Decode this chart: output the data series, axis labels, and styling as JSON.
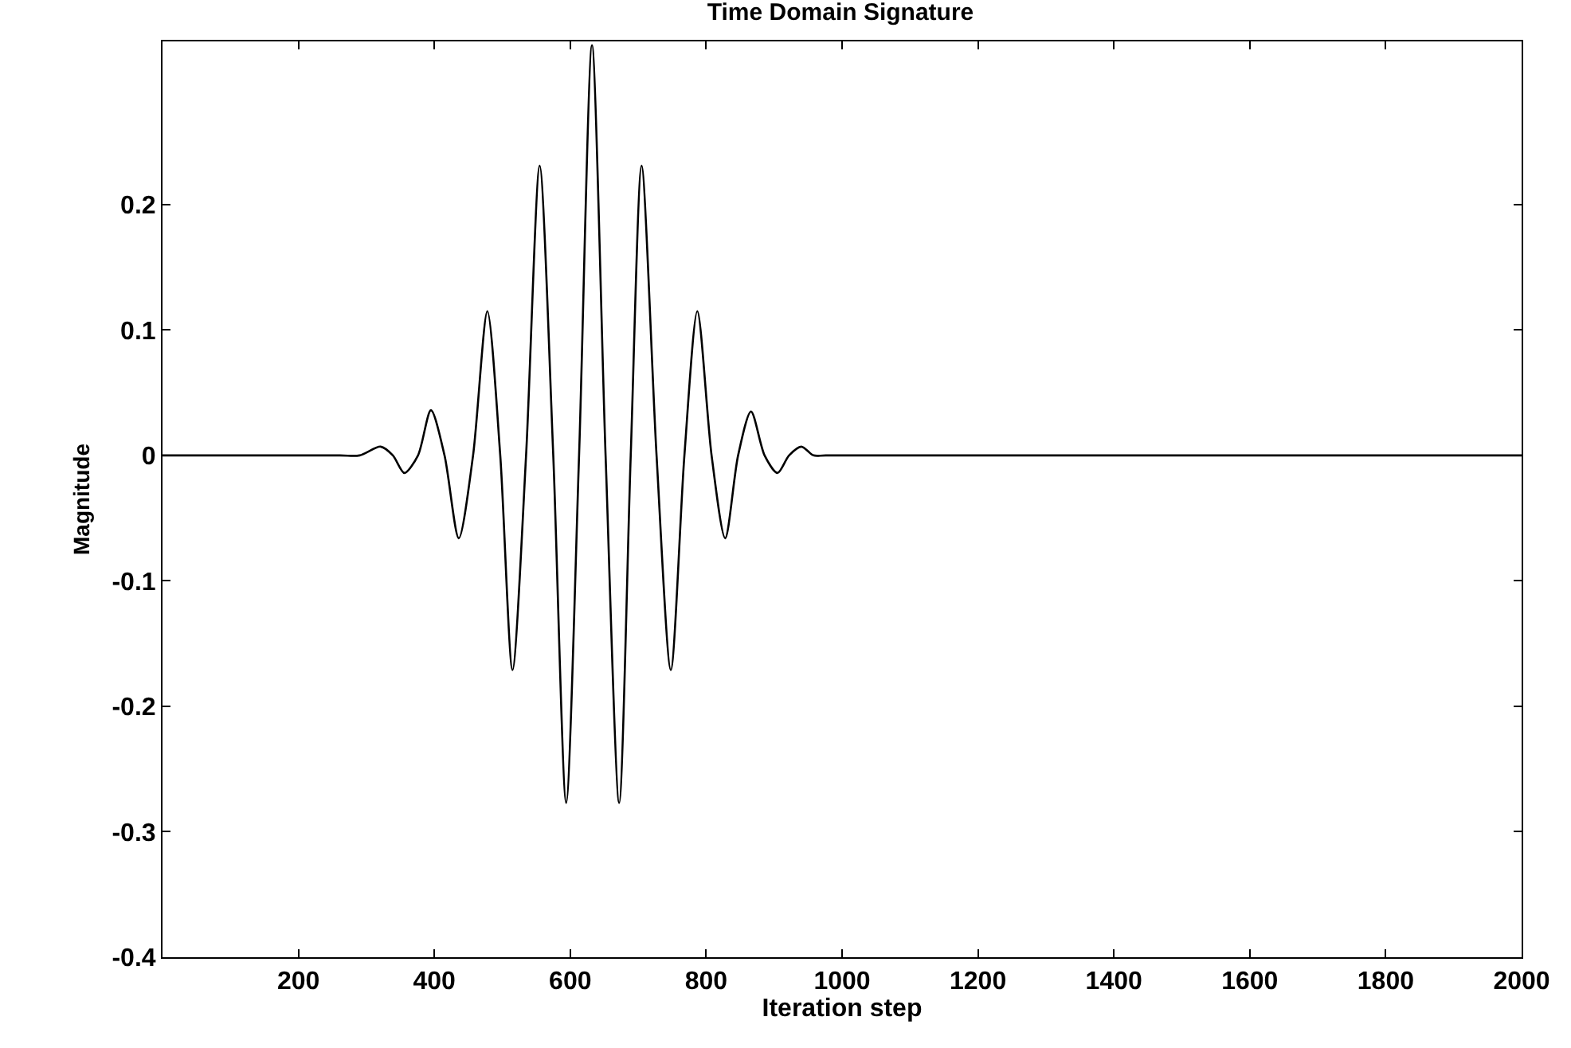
{
  "chart_data": {
    "type": "line",
    "title": "Time Domain Signature",
    "xlabel": "Iteration step",
    "ylabel": "Magnitude",
    "x": [
      0,
      261,
      290,
      321,
      339,
      356,
      376,
      395,
      415,
      436,
      457,
      478,
      497,
      515,
      535,
      555,
      575,
      594,
      613,
      632,
      652,
      672,
      689,
      705,
      727,
      748,
      768,
      787,
      808,
      828,
      847,
      866,
      886,
      905,
      922,
      940,
      958,
      976,
      2000
    ],
    "series": [
      {
        "color": "#000000",
        "values": [
          0,
          0,
          0,
          0.007,
          0,
          -0.014,
          0,
          0.036,
          0,
          -0.066,
          0,
          0.115,
          0,
          -0.171,
          0,
          0.231,
          0,
          -0.277,
          0,
          0.327,
          0,
          -0.277,
          0,
          0.231,
          0,
          -0.171,
          0,
          0.115,
          0,
          -0.066,
          0,
          0.035,
          0,
          -0.014,
          0,
          0.007,
          0,
          0,
          0
        ]
      }
    ],
    "xlim": [
      0,
      2000
    ],
    "ylim": [
      -0.4,
      0.33
    ],
    "xticks": [
      200,
      400,
      600,
      800,
      1000,
      1200,
      1400,
      1600,
      1800,
      2000
    ],
    "yticks": [
      -0.4,
      -0.3,
      -0.2,
      -0.1,
      0,
      0.1,
      0.2
    ],
    "line_style": "solid"
  }
}
